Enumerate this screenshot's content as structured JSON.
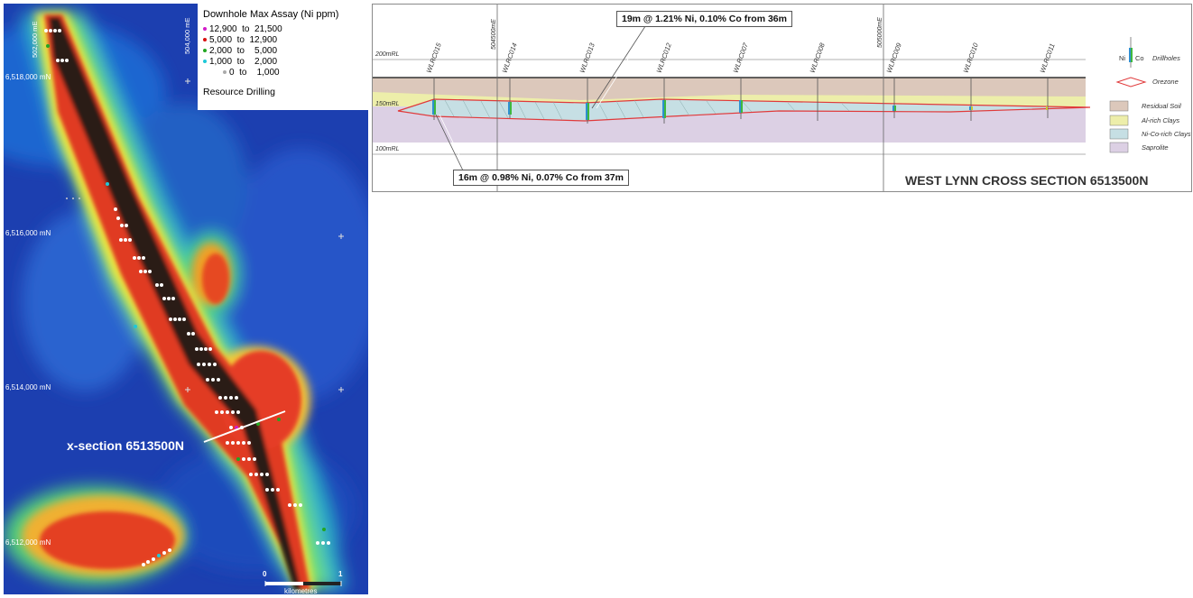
{
  "map": {
    "legend": {
      "title": "Downhole Max Assay (Ni ppm)",
      "classes": [
        {
          "label": "12,900  to  21,500",
          "color": "#d21cc8"
        },
        {
          "label": "5,000  to  12,900",
          "color": "#d81010"
        },
        {
          "label": "2,000  to    5,000",
          "color": "#22a622"
        },
        {
          "label": "1,000  to    2,000",
          "color": "#1ec8d8"
        },
        {
          "label": "0  to    1,000",
          "color": "#aaaaaa"
        }
      ],
      "resource": "Resource Drilling"
    },
    "northings": [
      "6,518,000 mN",
      "6,516,000 mN",
      "6,514,000 mN",
      "6,512,000 mN"
    ],
    "eastings": [
      "502,000 mE",
      "504,000 mE"
    ],
    "xsection_label": "x-section 6513500N",
    "scale": {
      "start": "0",
      "end": "1",
      "unit": "kilometres"
    }
  },
  "section": {
    "title": "WEST LYNN CROSS SECTION 6513500N",
    "rl_labels": [
      "200mRL",
      "150mRL",
      "100mRL"
    ],
    "easting_lines": [
      "504500mE",
      "505000mE"
    ],
    "holes": [
      "WLRC015",
      "WLRC014",
      "WLRC013",
      "WLRC012",
      "WLRC007",
      "WLRC008",
      "WLRC009",
      "WLRC010",
      "WLRC011"
    ],
    "callout_top": "19m @ 1.21% Ni, 0.10% Co from 36m",
    "callout_bottom": "16m @ 0.98% Ni, 0.07% Co from 37m",
    "legend": {
      "drill_ni": "Ni",
      "drill_co": "Co",
      "drillholes": "Drillholes",
      "orezone": "Orezone",
      "residual_soil": "Residual Soil",
      "al_clays": "Al-rich Clays",
      "nico_clays": "Ni-Co-rich Clays",
      "saprolite": "Saprolite"
    },
    "colors": {
      "residual_soil": "#dcc8bb",
      "al_clays": "#edeeaa",
      "nico_clays": "#c6dfe4",
      "saprolite": "#dcd0e4",
      "orezone": "#e0393a"
    }
  }
}
